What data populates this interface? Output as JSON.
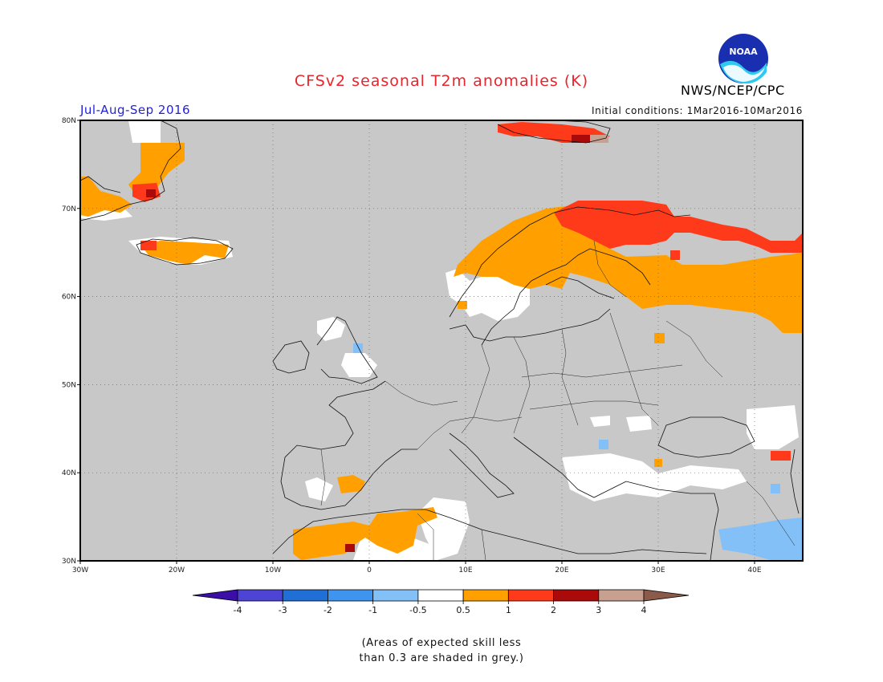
{
  "header": {
    "title": "CFSv2 seasonal T2m anomalies (K)",
    "agency": "NWS/NCEP/CPC",
    "season": "Jul-Aug-Sep 2016",
    "initial_conditions": "Initial conditions: 1Mar2016-10Mar2016"
  },
  "logo": {
    "text": "NOAA",
    "icon": "noaa-logo-icon"
  },
  "map": {
    "region": "Europe",
    "lon_range": [
      -30,
      45
    ],
    "lat_range": [
      30,
      80
    ],
    "lat_ticks": [
      "30N",
      "40N",
      "50N",
      "60N",
      "70N",
      "80N"
    ],
    "lon_ticks": [
      "30W",
      "20W",
      "10W",
      "0",
      "10E",
      "20E",
      "30E",
      "40E"
    ],
    "grid": "dotted",
    "ocean_color": "#c8c8c8"
  },
  "colorbar": {
    "labels": [
      "-4",
      "-3",
      "-2",
      "-1",
      "-0.5",
      "0.5",
      "1",
      "2",
      "3",
      "4"
    ],
    "colors": [
      "#3b0ea8",
      "#4d44d6",
      "#1f6fd6",
      "#3f94f0",
      "#84c0f8",
      "#ffffff",
      "#ffa000",
      "#ff3a1a",
      "#aa0a0a",
      "#c8a090",
      "#8b5a4a"
    ]
  },
  "note": {
    "line1": "(Areas of expected skill less",
    "line2": "than 0.3 are shaded in grey.)"
  }
}
